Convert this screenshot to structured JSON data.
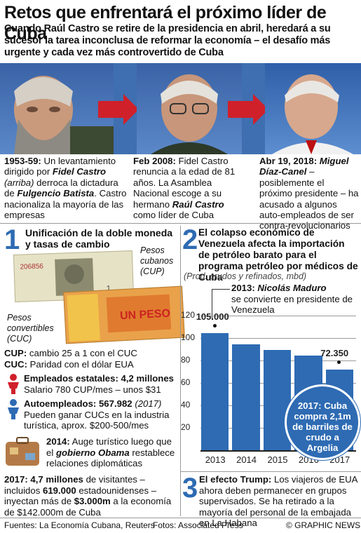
{
  "title": "Retos que enfrentará el próximo líder de Cuba",
  "subtitle": "Cuando Raúl Castro se retire de la presidencia en abril, heredará a su sucesor la tarea inconclusa de reformar la economía – el desafío más urgente y cada vez más controvertido de Cuba",
  "timeline": [
    {
      "date": "1953-59:",
      "text_a": " Un levantamiento dirigido por ",
      "name": "Fidel Castro",
      "paren": "(arriba)",
      "text_b": " derroca la dictadura de ",
      "name2": "Fulgencio Batista",
      "text_c": ". Castro nacionaliza la mayoría de las empresas"
    },
    {
      "date": "Feb 2008:",
      "text_a": " Fidel Castro renuncia a la edad de 81 años. La Asamblea Nacional escoge a su hermano ",
      "name": "Raúl Castro",
      "text_b": " como líder de Cuba"
    },
    {
      "date": "Abr 19, 2018:",
      "name": "Miguel Díaz-Canel",
      "text_a": " – posiblemente el próximo presidente – ha acusado a algunos auto-empleados de ser contra-revolucionarios"
    }
  ],
  "section1": {
    "number": "1",
    "heading": "Unificación de la doble moneda y tasas de cambio",
    "label_cup": "Pesos cubanos (CUP)",
    "label_cuc": "Pesos convertibles (CUC)",
    "cup_label": "CUP:",
    "cup_text": " cambio 25 a 1 con el CUC",
    "cuc_label": "CUC:",
    "cuc_text": " Paridad con el dólar EUA",
    "emp_state_title": "Empleados estatales: 4,2 millones",
    "emp_state_text": "Salario 780 CUP/mes – unos $31",
    "self_emp_title": "Autoempleados: 567.982",
    "self_emp_year": "(2017)",
    "self_emp_text": "Pueden ganar CUCs en la industria turística, aprox. $200-500/mes",
    "tourism_year": "2014:",
    "tourism_text_a": " Auge turístico luego que el ",
    "tourism_name": "gobierno Obama",
    "tourism_text_b": " restablece relaciones diplomáticas",
    "visitors_a": "2017:",
    "visitors_b": " 4,7 millones",
    "visitors_c": " de visitantes – incluidos ",
    "visitors_d": "619.000",
    "visitors_e": " estadounidenses – inyectan más de ",
    "visitors_f": "$3.000m",
    "visitors_g": " a la economía de $142.000m de Cuba"
  },
  "section2": {
    "number": "2",
    "heading": "El colapso económico de Venezuela afecta la importación de petróleo barato para el programa petróleo por médicos de Cuba",
    "units": "(Prod. crudos y refinados, mbd)",
    "maduro_year": "2013:",
    "maduro_name": " Nicolás Maduro",
    "maduro_text": "se convierte en presidente de Venezuela",
    "callout": "2017: Cuba compra 2,1m de barriles de crudo a Argelia"
  },
  "chart_data": {
    "type": "bar",
    "categories": [
      "2013",
      "2014",
      "2015",
      "2016",
      "2017"
    ],
    "values": [
      105000,
      95000,
      90000,
      85000,
      72350
    ],
    "data_labels": [
      "105.000",
      "",
      "",
      "",
      "72.350"
    ],
    "yticks": [
      "120",
      "100",
      "80",
      "60",
      "40",
      "20"
    ],
    "ylim": [
      0,
      120000
    ],
    "color": "#2e6bb3"
  },
  "section3": {
    "number": "3",
    "heading": "El efecto Trump:",
    "text": " Los viajeros de EUA ahora deben permanecer en grupos supervisados. Se ha retirado a la mayoría del personal de la embajada en La Habana"
  },
  "footer": {
    "sources": "Fuentes: La Economía Cubana, Reuters",
    "photos": "Fotos: Associated Press",
    "credit": "© GRAPHIC NEWS"
  },
  "colors": {
    "accent_blue": "#2e6bb3",
    "accent_red": "#d0202a"
  }
}
